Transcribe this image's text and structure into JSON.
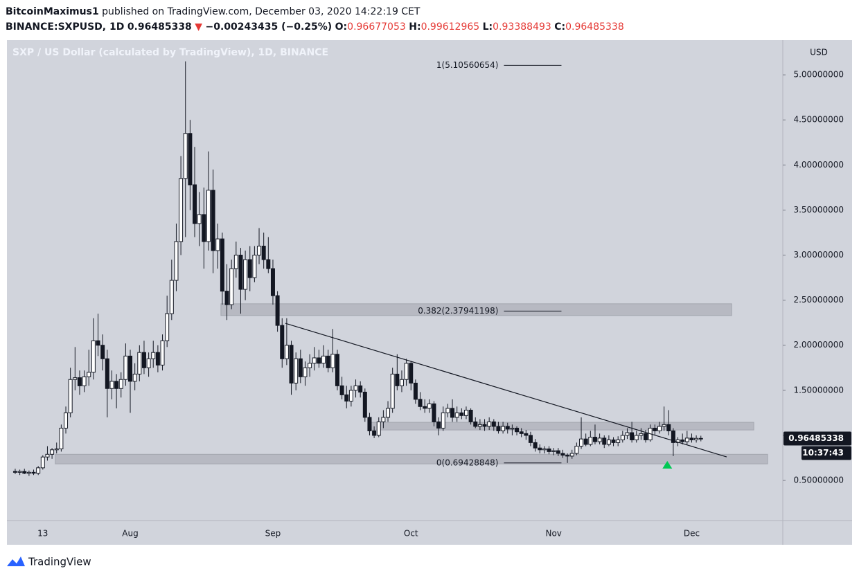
{
  "header": {
    "author": "BitcoinMaximus1",
    "published": "published on TradingView.com, December 03, 2020 14:22:19 CET",
    "symbol": "BINANCE:SXPUSD, 1D",
    "last": "0.96485338",
    "change_arrow": "▼",
    "change": "−0.00243435 (−0.25%)",
    "open_label": "O:",
    "open": "0.96677053",
    "high_label": "H:",
    "high": "0.99612965",
    "low_label": "L:",
    "low": "0.93388493",
    "close_label": "C:",
    "close": "0.96485338"
  },
  "chart_data": {
    "type": "candlestick",
    "title": "SXP / US Dollar (calculated by TradingView), 1D, BINANCE",
    "currency": "USD",
    "up_color": "#ffffff",
    "down_color": "#131722",
    "line_color": "#131722",
    "categories": [
      null,
      null,
      null,
      null,
      null,
      null,
      "13",
      null,
      null,
      null,
      null,
      null,
      null,
      null,
      null,
      null,
      null,
      null,
      null,
      null,
      null,
      null,
      null,
      null,
      null,
      "Aug",
      null,
      null,
      null,
      null,
      null,
      null,
      null,
      null,
      null,
      null,
      null,
      null,
      null,
      null,
      null,
      null,
      null,
      null,
      null,
      null,
      null,
      null,
      null,
      null,
      null,
      null,
      null,
      null,
      null,
      null,
      "Sep",
      null,
      null,
      null,
      null,
      null,
      null,
      null,
      null,
      null,
      null,
      null,
      null,
      null,
      null,
      null,
      null,
      null,
      null,
      null,
      null,
      null,
      null,
      null,
      null,
      null,
      null,
      null,
      null,
      null,
      "Oct",
      null,
      null,
      null,
      null,
      null,
      null,
      null,
      null,
      null,
      null,
      null,
      null,
      null,
      null,
      null,
      null,
      null,
      null,
      null,
      null,
      null,
      null,
      null,
      null,
      null,
      null,
      null,
      null,
      null,
      null,
      "Nov",
      null,
      null,
      null,
      null,
      null,
      null,
      null,
      null,
      null,
      null,
      null,
      null,
      null,
      null,
      null,
      null,
      null,
      null,
      null,
      null,
      null,
      null,
      null,
      null,
      null,
      null,
      null,
      null,
      null,
      "Dec",
      null,
      null
    ],
    "open": [
      0.6,
      0.59,
      0.6,
      0.58,
      0.59,
      0.58,
      0.64,
      0.76,
      0.79,
      0.84,
      0.85,
      1.08,
      1.25,
      1.62,
      1.64,
      1.55,
      1.65,
      1.7,
      2.05,
      2.0,
      1.85,
      1.52,
      1.6,
      1.52,
      1.62,
      1.88,
      1.6,
      1.68,
      1.92,
      1.75,
      1.85,
      1.92,
      1.78,
      2.05,
      2.35,
      2.72,
      3.15,
      3.85,
      4.35,
      3.78,
      3.35,
      3.45,
      3.15,
      3.72,
      3.05,
      3.18,
      2.6,
      2.45,
      2.85,
      3.0,
      2.62,
      2.95,
      2.75,
      3.0,
      3.1,
      2.95,
      2.85,
      2.55,
      2.22,
      1.85,
      2.0,
      1.58,
      1.85,
      1.65,
      1.75,
      1.8,
      1.86,
      1.8,
      1.88,
      1.75,
      1.9,
      1.55,
      1.45,
      1.38,
      1.5,
      1.55,
      1.48,
      1.2,
      1.05,
      1.0,
      1.15,
      1.2,
      1.3,
      1.68,
      1.55,
      1.62,
      1.8,
      1.58,
      1.4,
      1.32,
      1.3,
      1.35,
      1.15,
      1.08,
      1.25,
      1.3,
      1.2,
      1.25,
      1.22,
      1.28,
      1.15,
      1.1,
      1.12,
      1.1,
      1.15,
      1.1,
      1.05,
      1.1,
      1.07,
      1.08,
      1.04,
      1.02,
      1.0,
      0.92,
      0.86,
      0.84,
      0.85,
      0.82,
      0.83,
      0.8,
      0.78,
      0.77,
      0.8,
      0.88,
      0.96,
      0.9,
      0.98,
      0.93,
      0.97,
      0.9,
      0.95,
      0.92,
      0.95,
      1.0,
      1.03,
      0.95,
      1.0,
      1.02,
      0.95,
      1.08,
      1.05,
      1.1,
      1.12,
      1.05,
      0.92,
      0.95,
      0.93,
      0.97,
      0.95,
      0.96677053
    ],
    "high": [
      0.63,
      0.62,
      0.63,
      0.61,
      0.62,
      0.66,
      0.78,
      0.88,
      0.86,
      0.92,
      1.12,
      1.32,
      1.75,
      1.98,
      1.72,
      1.72,
      1.95,
      2.3,
      2.35,
      2.12,
      1.95,
      1.72,
      1.68,
      1.7,
      2.02,
      1.95,
      1.8,
      2.0,
      2.05,
      1.92,
      2.05,
      2.0,
      2.12,
      2.55,
      2.95,
      3.35,
      4.1,
      5.15,
      4.5,
      4.2,
      3.7,
      3.75,
      4.15,
      3.95,
      3.35,
      3.25,
      2.9,
      2.95,
      3.15,
      3.08,
      3.05,
      3.1,
      3.1,
      3.3,
      3.25,
      3.2,
      2.95,
      2.6,
      2.3,
      2.3,
      2.05,
      1.92,
      1.95,
      1.82,
      1.9,
      1.98,
      1.95,
      2.0,
      1.95,
      2.18,
      1.95,
      1.65,
      1.55,
      1.55,
      1.62,
      1.6,
      1.52,
      1.25,
      1.1,
      1.2,
      1.28,
      1.38,
      1.75,
      1.9,
      1.72,
      1.85,
      1.82,
      1.62,
      1.48,
      1.4,
      1.4,
      1.38,
      1.2,
      1.32,
      1.35,
      1.4,
      1.32,
      1.3,
      1.32,
      1.3,
      1.2,
      1.18,
      1.18,
      1.2,
      1.18,
      1.15,
      1.15,
      1.14,
      1.12,
      1.1,
      1.08,
      1.06,
      1.04,
      0.96,
      0.9,
      0.88,
      0.88,
      0.86,
      0.86,
      0.84,
      0.8,
      0.84,
      0.92,
      1.2,
      1.02,
      1.05,
      1.12,
      1.02,
      1.0,
      1.0,
      0.98,
      0.99,
      1.05,
      1.08,
      1.15,
      1.05,
      1.08,
      1.06,
      1.12,
      1.12,
      1.15,
      1.32,
      1.28,
      1.08,
      0.98,
      1.02,
      1.05,
      1.02,
      1.0,
      0.99612965
    ],
    "low": [
      0.57,
      0.56,
      0.57,
      0.55,
      0.56,
      0.56,
      0.62,
      0.72,
      0.74,
      0.8,
      0.82,
      1.02,
      1.2,
      1.5,
      1.45,
      1.48,
      1.55,
      1.62,
      1.88,
      1.72,
      1.2,
      1.4,
      1.3,
      1.42,
      1.55,
      1.25,
      1.5,
      1.6,
      1.68,
      1.65,
      1.75,
      1.7,
      1.72,
      1.98,
      2.28,
      2.6,
      3.0,
      3.2,
      3.5,
      3.2,
      3.1,
      2.85,
      3.05,
      2.8,
      2.85,
      2.45,
      2.28,
      2.4,
      2.75,
      2.35,
      2.5,
      2.6,
      2.7,
      2.9,
      2.85,
      2.8,
      2.45,
      2.15,
      1.75,
      1.78,
      1.45,
      1.5,
      1.58,
      1.55,
      1.65,
      1.72,
      1.75,
      1.75,
      1.7,
      1.7,
      1.5,
      1.4,
      1.3,
      1.32,
      1.42,
      1.42,
      1.15,
      1.0,
      0.97,
      0.98,
      1.08,
      1.15,
      1.25,
      1.5,
      1.48,
      1.55,
      1.5,
      1.35,
      1.28,
      1.25,
      1.25,
      1.1,
      1.0,
      1.05,
      1.2,
      1.15,
      1.15,
      1.18,
      1.18,
      1.12,
      1.08,
      1.06,
      1.05,
      1.06,
      1.05,
      1.02,
      1.02,
      1.02,
      1.0,
      1.0,
      0.98,
      0.95,
      0.88,
      0.82,
      0.8,
      0.8,
      0.79,
      0.78,
      0.77,
      0.75,
      0.694,
      0.74,
      0.78,
      0.85,
      0.88,
      0.88,
      0.9,
      0.9,
      0.86,
      0.88,
      0.88,
      0.88,
      0.92,
      0.96,
      0.92,
      0.92,
      0.95,
      0.92,
      0.93,
      1.0,
      1.02,
      1.05,
      1.0,
      0.77,
      0.88,
      0.9,
      0.9,
      0.92,
      0.92,
      0.93388493
    ],
    "close": [
      0.59,
      0.6,
      0.58,
      0.59,
      0.58,
      0.64,
      0.76,
      0.79,
      0.84,
      0.85,
      1.08,
      1.25,
      1.62,
      1.64,
      1.55,
      1.65,
      1.7,
      2.05,
      2.0,
      1.85,
      1.52,
      1.6,
      1.52,
      1.62,
      1.88,
      1.6,
      1.68,
      1.92,
      1.75,
      1.85,
      1.92,
      1.78,
      2.05,
      2.35,
      2.72,
      3.15,
      3.85,
      4.35,
      3.78,
      3.35,
      3.45,
      3.15,
      3.72,
      3.05,
      3.18,
      2.6,
      2.45,
      2.85,
      3.0,
      2.62,
      2.95,
      2.75,
      3.0,
      3.1,
      2.95,
      2.85,
      2.55,
      2.22,
      1.85,
      2.0,
      1.58,
      1.85,
      1.65,
      1.75,
      1.8,
      1.86,
      1.8,
      1.88,
      1.75,
      1.9,
      1.55,
      1.45,
      1.38,
      1.5,
      1.55,
      1.48,
      1.2,
      1.05,
      1.0,
      1.15,
      1.2,
      1.3,
      1.68,
      1.55,
      1.62,
      1.8,
      1.58,
      1.4,
      1.32,
      1.3,
      1.35,
      1.15,
      1.08,
      1.25,
      1.3,
      1.2,
      1.25,
      1.22,
      1.28,
      1.15,
      1.1,
      1.12,
      1.1,
      1.15,
      1.1,
      1.05,
      1.1,
      1.07,
      1.08,
      1.04,
      1.02,
      1.0,
      0.92,
      0.86,
      0.84,
      0.85,
      0.82,
      0.83,
      0.8,
      0.78,
      0.77,
      0.8,
      0.88,
      0.96,
      0.9,
      0.98,
      0.93,
      0.97,
      0.9,
      0.95,
      0.92,
      0.95,
      1.0,
      1.03,
      0.95,
      1.0,
      1.02,
      0.95,
      1.08,
      1.05,
      1.1,
      1.12,
      1.05,
      0.92,
      0.95,
      0.93,
      0.97,
      0.95,
      0.967,
      0.96485338
    ],
    "xlim": [
      -1.8,
      166.8
    ],
    "ylim": [
      0.055,
      5.385
    ],
    "yticks": [
      {
        "value": 0.5,
        "label": "0.50000000"
      },
      {
        "value": 1.0,
        "label": "1.00000000"
      },
      {
        "value": 1.5,
        "label": "1.50000000"
      },
      {
        "value": 2.0,
        "label": "2.00000000"
      },
      {
        "value": 2.5,
        "label": "2.50000000"
      },
      {
        "value": 3.0,
        "label": "3.00000000"
      },
      {
        "value": 3.5,
        "label": "3.50000000"
      },
      {
        "value": 4.0,
        "label": "4.00000000"
      },
      {
        "value": 4.5,
        "label": "4.50000000"
      },
      {
        "value": 5.0,
        "label": "5.00000000"
      }
    ],
    "last_price": {
      "value": 0.96485338,
      "label": "0.96485338"
    },
    "countdown": "10:37:43",
    "fib_levels": [
      {
        "level": 1,
        "price": 5.10560654,
        "label": "1(5.10560654)",
        "x_from": 106.2,
        "x_to": 118.7
      },
      {
        "level": 0.382,
        "price": 2.37941198,
        "label": "0.382(2.37941198)",
        "x_from": 106.2,
        "x_to": 118.7
      },
      {
        "level": 0,
        "price": 0.69428848,
        "label": "0(0.69428848)",
        "x_from": 106.2,
        "x_to": 118.7
      }
    ],
    "zones": [
      {
        "from": 44.7,
        "to": 155.7,
        "low": 2.33,
        "high": 2.46
      },
      {
        "from": 76.8,
        "to": 160.5,
        "low": 1.06,
        "high": 1.145
      },
      {
        "from": 8.7,
        "to": 163.5,
        "low": 0.684,
        "high": 0.79
      }
    ],
    "trendline": {
      "x": [
        58.7,
        154.6
      ],
      "y": [
        2.243,
        0.761
      ]
    },
    "marker": {
      "x": 141.7,
      "y": 0.67,
      "color": "#00c853"
    }
  },
  "footer": {
    "brand": "TradingView"
  }
}
